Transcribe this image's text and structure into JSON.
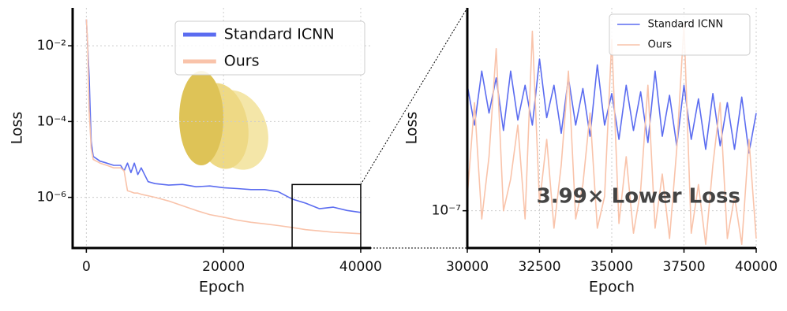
{
  "chart_data": [
    {
      "type": "line",
      "xlabel": "Epoch",
      "ylabel": "Loss",
      "log_y": true,
      "grid": true,
      "legend": "upper right",
      "xlim": [
        -2000,
        41500
      ],
      "ylim": [
        4.6e-08,
        0.1
      ],
      "xticks": [
        0,
        20000,
        40000
      ],
      "yticks": [
        {
          "value": 0.01,
          "label": "10⁻²"
        },
        {
          "value": 0.0001,
          "label": "10⁻⁴"
        },
        {
          "value": 1e-06,
          "label": "10⁻⁶"
        }
      ],
      "x": [
        0,
        200,
        400,
        700,
        1000,
        2000,
        3000,
        4000,
        5000,
        5500,
        6000,
        6500,
        7000,
        7500,
        8000,
        9000,
        10000,
        12000,
        14000,
        16000,
        18000,
        20000,
        22000,
        24000,
        26000,
        28000,
        30000,
        32000,
        34000,
        36000,
        38000,
        40000
      ],
      "series": [
        {
          "name": "Standard ICNN",
          "color": "#5b6cf0",
          "values": [
            0.05,
            0.01,
            0.0015,
            3e-05,
            1.2e-05,
            9e-06,
            8e-06,
            7e-06,
            7e-06,
            5e-06,
            8e-06,
            4.5e-06,
            8e-06,
            4e-06,
            6e-06,
            2.6e-06,
            2.3e-06,
            2.1e-06,
            2.2e-06,
            1.9e-06,
            2e-06,
            1.8e-06,
            1.7e-06,
            1.6e-06,
            1.6e-06,
            1.4e-06,
            9e-07,
            7e-07,
            5e-07,
            5.5e-07,
            4.5e-07,
            4e-07
          ]
        },
        {
          "name": "Ours",
          "color": "#f9c3aa",
          "values": [
            0.05,
            0.01,
            0.0002,
            2e-05,
            1e-05,
            8e-06,
            7e-06,
            6e-06,
            6e-06,
            5e-06,
            1.5e-06,
            1.4e-06,
            1.3e-06,
            1.3e-06,
            1.2e-06,
            1.1e-06,
            1e-06,
            8e-07,
            6e-07,
            4.5e-07,
            3.5e-07,
            3e-07,
            2.5e-07,
            2.2e-07,
            2e-07,
            1.8e-07,
            1.6e-07,
            1.4e-07,
            1.3e-07,
            1.2e-07,
            1.15e-07,
            1.1e-07
          ]
        }
      ]
    },
    {
      "type": "line",
      "xlabel": "Epoch",
      "ylabel": "Loss",
      "log_y": true,
      "grid": true,
      "legend": "upper right",
      "annotation": "3.99× Lower Loss",
      "xlim": [
        30000,
        40000
      ],
      "ylim": [
        6.2e-08,
        1.35e-06
      ],
      "xticks": [
        30000,
        32500,
        35000,
        37500,
        40000
      ],
      "yticks": [
        {
          "value": 1e-07,
          "label": "10⁻⁷"
        }
      ],
      "x": [
        30000,
        30250,
        30500,
        30750,
        31000,
        31250,
        31500,
        31750,
        32000,
        32250,
        32500,
        32750,
        33000,
        33250,
        33500,
        33750,
        34000,
        34250,
        34500,
        34750,
        35000,
        35250,
        35500,
        35750,
        36000,
        36250,
        36500,
        36750,
        37000,
        37250,
        37500,
        37750,
        38000,
        38250,
        38500,
        38750,
        39000,
        39250,
        39500,
        39750,
        40000
      ],
      "series": [
        {
          "name": "Standard ICNN",
          "color": "#5b6cf0",
          "values": [
            5e-07,
            3e-07,
            6e-07,
            3.5e-07,
            5.5e-07,
            2.8e-07,
            6e-07,
            3.2e-07,
            5e-07,
            3e-07,
            7e-07,
            3.3e-07,
            5e-07,
            2.7e-07,
            5.5e-07,
            3e-07,
            4.8e-07,
            2.6e-07,
            6.5e-07,
            3e-07,
            4.5e-07,
            2.5e-07,
            5e-07,
            2.8e-07,
            4.6e-07,
            2.4e-07,
            6e-07,
            2.6e-07,
            4.4e-07,
            2.3e-07,
            5e-07,
            2.5e-07,
            4.2e-07,
            2.2e-07,
            4.5e-07,
            2.3e-07,
            4e-07,
            2.2e-07,
            4.3e-07,
            2.1e-07,
            3.5e-07
          ]
        },
        {
          "name": "Ours",
          "color": "#f9c3aa",
          "values": [
            1.2e-07,
            4e-07,
            9e-08,
            2e-07,
            8e-07,
            1e-07,
            1.5e-07,
            3e-07,
            9e-08,
            1e-06,
            1.1e-07,
            2.5e-07,
            8e-08,
            1.8e-07,
            6e-07,
            9e-08,
            1.4e-07,
            3.5e-07,
            8e-08,
            1.2e-07,
            9e-07,
            8.5e-08,
            2e-07,
            7.5e-08,
            1.3e-07,
            5e-07,
            8e-08,
            1.6e-07,
            7e-08,
            2.2e-07,
            1.1e-06,
            7.5e-08,
            1.4e-07,
            6.5e-08,
            1.8e-07,
            4e-07,
            7e-08,
            1.2e-07,
            6.5e-08,
            2.5e-07,
            7e-08
          ]
        }
      ]
    }
  ]
}
